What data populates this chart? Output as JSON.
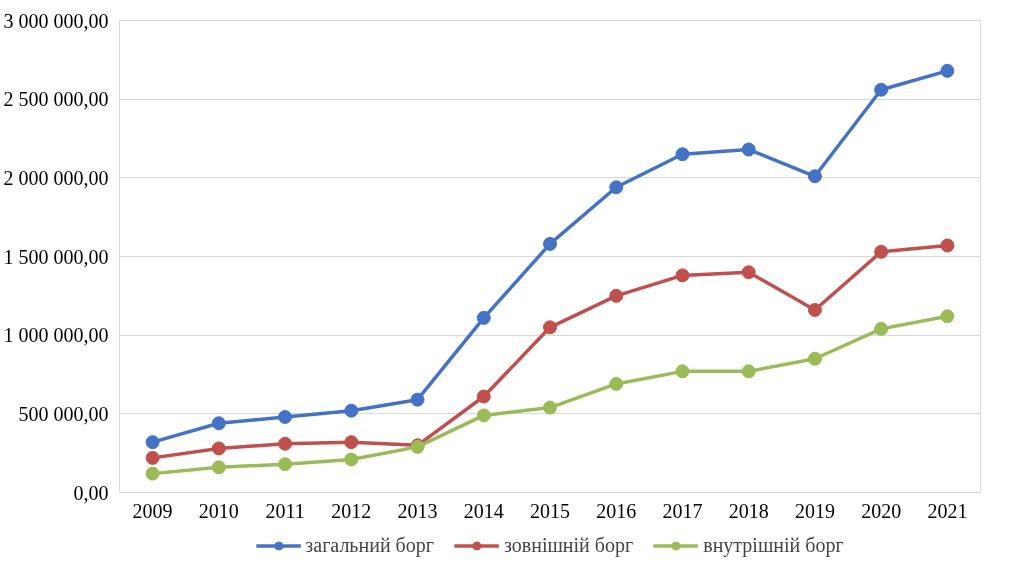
{
  "chart_data": {
    "type": "line",
    "categories": [
      "2009",
      "2010",
      "2011",
      "2012",
      "2013",
      "2014",
      "2015",
      "2016",
      "2017",
      "2018",
      "2019",
      "2020",
      "2021"
    ],
    "ylim": [
      0,
      3000000
    ],
    "yticks": [
      {
        "value": 0,
        "label": "0,00"
      },
      {
        "value": 500000,
        "label": "500 000,00"
      },
      {
        "value": 1000000,
        "label": "1 000 000,00"
      },
      {
        "value": 1500000,
        "label": "1 500 000,00"
      },
      {
        "value": 2000000,
        "label": "2 000 000,00"
      },
      {
        "value": 2500000,
        "label": "2 500 000,00"
      },
      {
        "value": 3000000,
        "label": "3 000 000,00"
      }
    ],
    "grid": "y",
    "legend": "bottom",
    "marker": "circle",
    "line_style": "solid",
    "series": [
      {
        "name": "загальний борг",
        "color": "#4472c4",
        "values": [
          320000,
          440000,
          480000,
          520000,
          590000,
          1110000,
          1580000,
          1940000,
          2150000,
          2180000,
          2010000,
          2560000,
          2680000
        ]
      },
      {
        "name": "зовнішній борг",
        "color": "#c0504d",
        "values": [
          220000,
          280000,
          310000,
          320000,
          300000,
          610000,
          1050000,
          1250000,
          1380000,
          1400000,
          1160000,
          1530000,
          1570000
        ]
      },
      {
        "name": "внутрішній борг",
        "color": "#9bbb59",
        "values": [
          120000,
          160000,
          180000,
          210000,
          290000,
          490000,
          540000,
          690000,
          770000,
          770000,
          850000,
          1040000,
          1120000
        ]
      }
    ]
  }
}
